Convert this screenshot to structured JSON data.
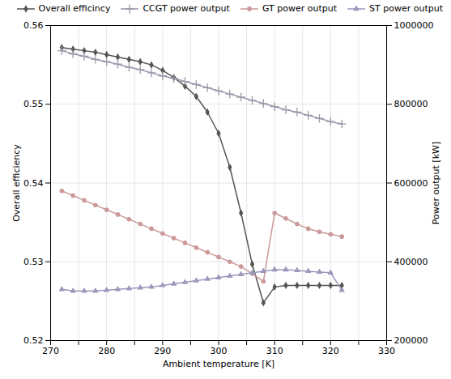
{
  "chart_data": {
    "type": "line",
    "xlabel": "Ambient temperature [K]",
    "ylabel": "Overall efficiency",
    "y2label": "Power output [kW]",
    "x": [
      272,
      274,
      276,
      278,
      280,
      282,
      284,
      286,
      288,
      290,
      292,
      294,
      296,
      298,
      300,
      302,
      304,
      306,
      308,
      310,
      312,
      314,
      316,
      318,
      320,
      322
    ],
    "series": [
      {
        "name": "Overall efficincy",
        "color": "#555555",
        "marker": "diamond",
        "values": [
          0.5572,
          0.557,
          0.5568,
          0.5566,
          0.5563,
          0.556,
          0.5557,
          0.5554,
          0.555,
          0.5543,
          0.5534,
          0.5523,
          0.551,
          0.549,
          0.5463,
          0.542,
          0.5362,
          0.5297,
          0.5248,
          0.5268,
          0.527,
          0.527,
          0.527,
          0.527,
          0.527,
          0.527
        ]
      },
      {
        "name": "CCGT power output",
        "color": "#9999aa",
        "marker": "plus",
        "values": [
          0.5568,
          0.5564,
          0.5561,
          0.5557,
          0.5554,
          0.5551,
          0.5547,
          0.5544,
          0.554,
          0.5536,
          0.5533,
          0.5529,
          0.5525,
          0.5521,
          0.5517,
          0.5513,
          0.5509,
          0.5505,
          0.5501,
          0.5497,
          0.5493,
          0.549,
          0.5486,
          0.5482,
          0.5478,
          0.5475
        ]
      },
      {
        "name": "GT power output",
        "color": "#cc9999",
        "marker": "circle",
        "values": [
          0.539,
          0.5384,
          0.5378,
          0.5372,
          0.5366,
          0.536,
          0.5354,
          0.5348,
          0.5342,
          0.5336,
          0.533,
          0.5324,
          0.5318,
          0.5312,
          0.5306,
          0.53,
          0.5294,
          0.5285,
          0.5275,
          0.5362,
          0.5355,
          0.5348,
          0.5342,
          0.5338,
          0.5335,
          0.5332
        ]
      },
      {
        "name": "ST power output",
        "color": "#9999bb",
        "marker": "triangle",
        "values": [
          0.5265,
          0.5263,
          0.5263,
          0.5263,
          0.5264,
          0.5265,
          0.5266,
          0.5267,
          0.5268,
          0.527,
          0.5272,
          0.5274,
          0.5276,
          0.5278,
          0.528,
          0.5282,
          0.5284,
          0.5286,
          0.5288,
          0.529,
          0.529,
          0.5289,
          0.5288,
          0.5287,
          0.5286,
          0.5264
        ]
      }
    ],
    "xlim": [
      270,
      330
    ],
    "xticks": [
      270,
      {
        "value": 275,
        "label": ""
      },
      280,
      {
        "value": 285,
        "label": ""
      },
      290,
      {
        "value": 295,
        "label": ""
      },
      300,
      {
        "value": 305,
        "label": ""
      },
      310,
      {
        "value": 315,
        "label": ""
      },
      320,
      {
        "value": 325,
        "label": ""
      },
      330
    ],
    "ylim": [
      0.52,
      0.56
    ],
    "yticks": [
      0.52,
      0.53,
      0.54,
      0.55,
      0.56
    ],
    "y2lim": [
      200000,
      1000000
    ],
    "y2ticks": [
      200000,
      400000,
      600000,
      800000,
      1000000
    ],
    "grid": true,
    "legend": "upper right"
  }
}
